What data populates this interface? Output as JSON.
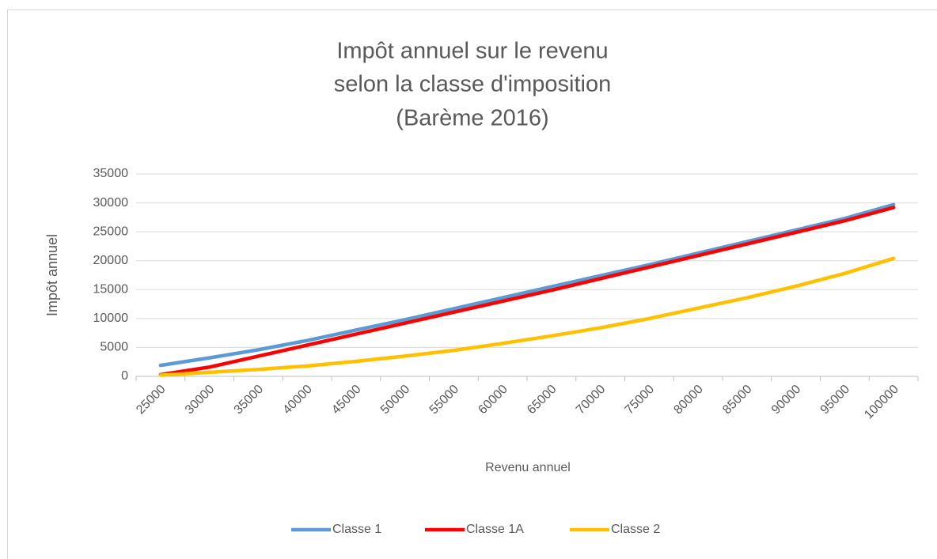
{
  "chart_data": {
    "type": "line",
    "title": [
      "Impôt annuel sur le revenu",
      "selon la classe d'imposition",
      "(Barème 2016)"
    ],
    "x_label": "Revenu annuel",
    "y_label": "Impôt annuel",
    "categories": [
      "25000",
      "30000",
      "35000",
      "40000",
      "45000",
      "50000",
      "55000",
      "60000",
      "65000",
      "70000",
      "75000",
      "80000",
      "85000",
      "90000",
      "95000",
      "100000"
    ],
    "series": [
      {
        "name": "Classe 1",
        "color": "#5b9bd5",
        "values": [
          1900,
          3200,
          4600,
          6200,
          8000,
          9800,
          11700,
          13600,
          15500,
          17400,
          19300,
          21300,
          23300,
          25300,
          27300,
          29700
        ]
      },
      {
        "name": "Classe 1A",
        "color": "#ff0000",
        "values": [
          300,
          1600,
          3500,
          5400,
          7300,
          9200,
          11100,
          13000,
          14900,
          16900,
          18900,
          20900,
          22900,
          24900,
          26900,
          29200
        ]
      },
      {
        "name": "Classe 2",
        "color": "#ffc000",
        "values": [
          200,
          700,
          1200,
          1800,
          2600,
          3500,
          4500,
          5700,
          7000,
          8400,
          10000,
          11800,
          13600,
          15600,
          17800,
          20400
        ]
      }
    ],
    "ylim": [
      0,
      35000
    ],
    "yticks": [
      0,
      5000,
      10000,
      15000,
      20000,
      25000,
      30000,
      35000
    ],
    "grid": true,
    "legend": "bottom"
  }
}
